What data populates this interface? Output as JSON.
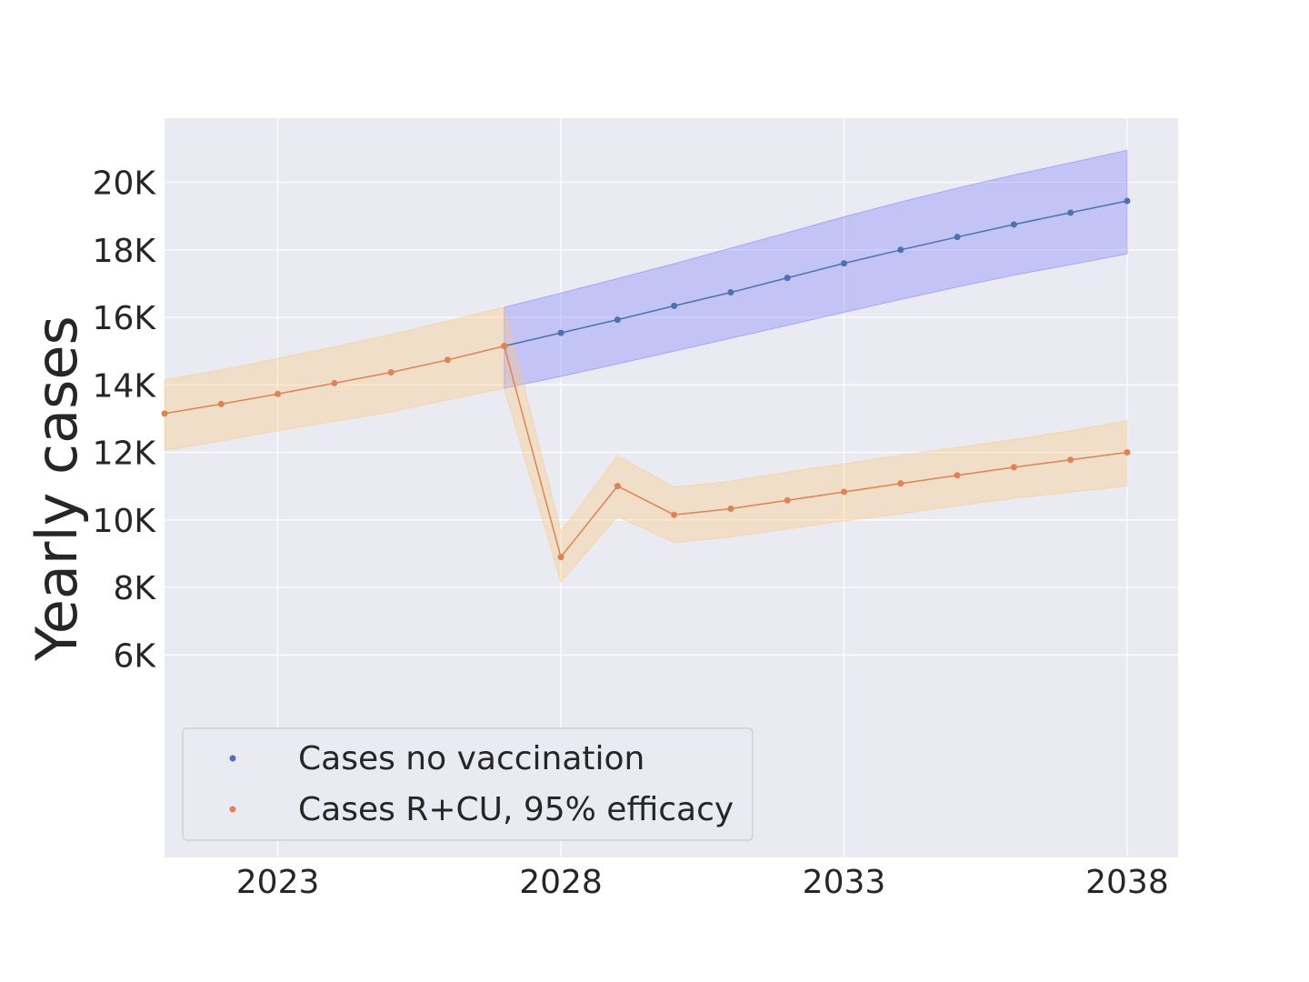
{
  "chart_data": {
    "type": "line",
    "title": "",
    "xlabel": "",
    "ylabel": "Yearly cases",
    "xlim": [
      2021.0,
      2038.9
    ],
    "ylim": [
      0,
      21900
    ],
    "x_ticks": [
      2023,
      2028,
      2033,
      2038
    ],
    "x_tick_labels": [
      "2023",
      "2028",
      "2033",
      "2038"
    ],
    "y_ticks": [
      6000,
      8000,
      10000,
      12000,
      14000,
      16000,
      18000,
      20000
    ],
    "y_tick_labels": [
      "6K",
      "8K",
      "10K",
      "12K",
      "14K",
      "16K",
      "18K",
      "20K"
    ],
    "grid": true,
    "legend_position": "lower-left",
    "series": [
      {
        "name": "Cases no vaccination",
        "color": "#4c72b0",
        "band_color": "#7b7bff",
        "x": [
          2027,
          2028,
          2029,
          2030,
          2031,
          2032,
          2033,
          2034,
          2035,
          2036,
          2037,
          2038
        ],
        "values": [
          15150,
          15540,
          15930,
          16340,
          16740,
          17170,
          17600,
          18000,
          18380,
          18750,
          19100,
          19450
        ],
        "lower": [
          13900,
          14250,
          14620,
          15000,
          15380,
          15760,
          16150,
          16530,
          16900,
          17250,
          17560,
          17880
        ],
        "upper": [
          16300,
          16720,
          17150,
          17590,
          18050,
          18510,
          18980,
          19420,
          19830,
          20220,
          20580,
          20950
        ]
      },
      {
        "name": "Cases R+CU, 95% efficacy",
        "color": "#dd8452",
        "band_color": "#ffc87a",
        "x": [
          2021,
          2022,
          2023,
          2024,
          2025,
          2026,
          2027,
          2028,
          2029,
          2030,
          2031,
          2032,
          2033,
          2034,
          2035,
          2036,
          2037,
          2038
        ],
        "values": [
          13150,
          13430,
          13730,
          14050,
          14370,
          14740,
          15150,
          8900,
          11000,
          10150,
          10330,
          10580,
          10830,
          11080,
          11320,
          11560,
          11780,
          12000
        ],
        "lower": [
          12050,
          12340,
          12640,
          12920,
          13200,
          13560,
          13900,
          8150,
          10100,
          9330,
          9490,
          9730,
          9970,
          10180,
          10420,
          10640,
          10820,
          11000
        ],
        "upper": [
          14150,
          14440,
          14780,
          15130,
          15490,
          15890,
          16300,
          9650,
          11900,
          10970,
          11150,
          11420,
          11660,
          11910,
          12150,
          12380,
          12640,
          12940
        ]
      }
    ]
  }
}
